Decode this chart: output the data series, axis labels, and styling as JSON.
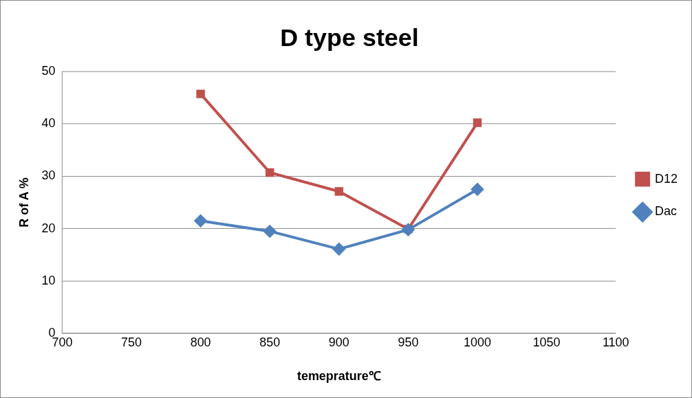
{
  "chart_data": {
    "type": "line",
    "title": "D type steel",
    "xlabel": "temeprature℃",
    "ylabel": "R of A %",
    "x": [
      800,
      850,
      900,
      950,
      1000
    ],
    "series": [
      {
        "name": "D12",
        "color": "#c0504d",
        "marker": "square",
        "values": [
          45.7,
          30.7,
          27.1,
          19.9,
          40.2
        ]
      },
      {
        "name": "Dac",
        "color": "#4f81bd",
        "marker": "diamond",
        "values": [
          21.5,
          19.5,
          16.1,
          19.8,
          27.5
        ]
      }
    ],
    "xlim": [
      700,
      1100
    ],
    "xticks": [
      700,
      750,
      800,
      850,
      900,
      950,
      1000,
      1050,
      1100
    ],
    "ylim": [
      0,
      50
    ],
    "yticks": [
      0,
      10,
      20,
      30,
      40,
      50
    ],
    "grid": "y",
    "legend": "right",
    "line_style": "solid"
  }
}
